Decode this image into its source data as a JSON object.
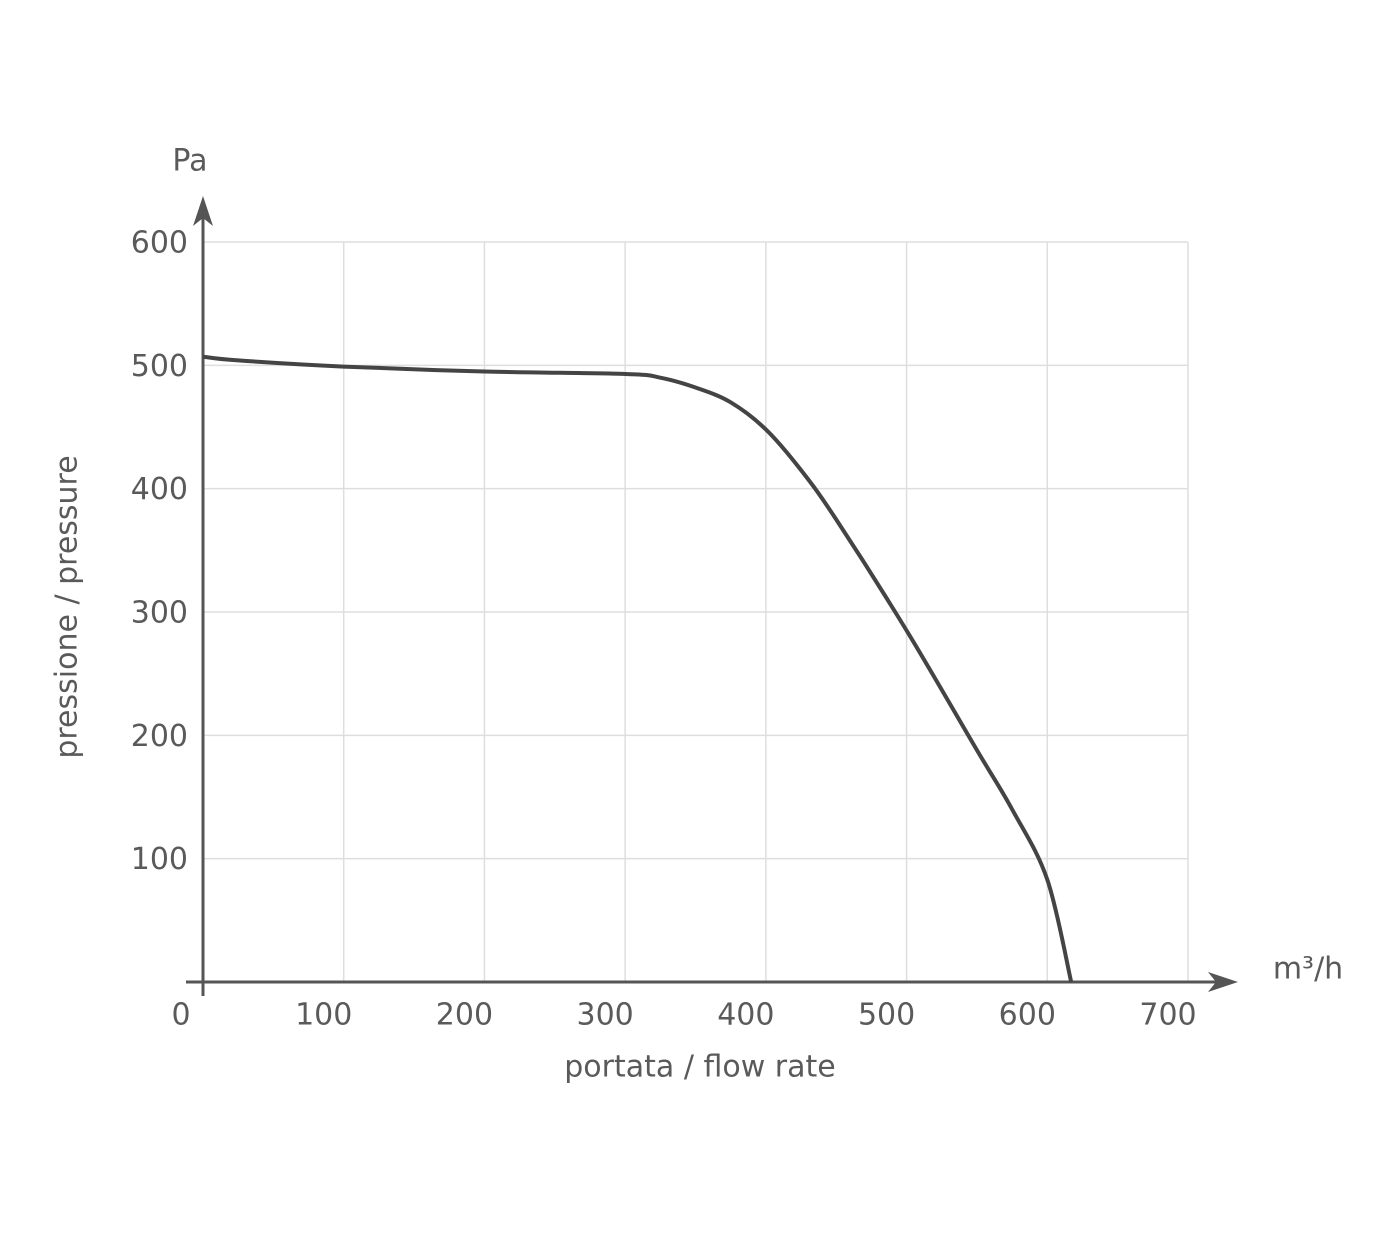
{
  "chart_data": {
    "type": "line",
    "y_unit": "Pa",
    "x_unit": "m³/h",
    "y_label": "pressione / pressure",
    "x_label": "portata / flow rate",
    "x": [
      0,
      25,
      100,
      200,
      300,
      325,
      350,
      375,
      400,
      425,
      450,
      500,
      550,
      575,
      600,
      617
    ],
    "series": [
      {
        "color": "#444444",
        "values": [
          507,
          504,
          499,
          495,
          493,
          490,
          482,
          470,
          448,
          415,
          375,
          285,
          188,
          140,
          83,
          0
        ]
      }
    ],
    "xlim": [
      0,
      700
    ],
    "xticks": [
      0,
      100,
      200,
      300,
      400,
      500,
      600,
      700
    ],
    "ylim": [
      0,
      600
    ],
    "yticks": [
      100,
      200,
      300,
      400,
      500,
      600
    ],
    "grid": true
  }
}
